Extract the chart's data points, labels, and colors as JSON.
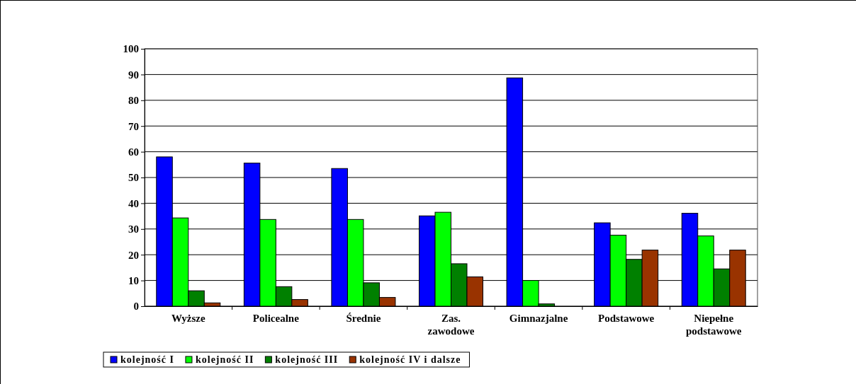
{
  "chart_data": {
    "type": "bar",
    "categories": [
      "Wyższe",
      "Policealne",
      "Średnie",
      "Zas. zawodowe",
      "Gimnazjalne",
      "Podstawowe",
      "Niepełne podstawowe"
    ],
    "series": [
      {
        "name": "kolejność I",
        "color": "#0000ff",
        "values": [
          58.0,
          55.6,
          53.5,
          35.1,
          88.7,
          32.4,
          36.1
        ]
      },
      {
        "name": "kolejność II",
        "color": "#00ff00",
        "values": [
          34.3,
          33.7,
          33.7,
          36.5,
          10.0,
          27.6,
          27.3
        ]
      },
      {
        "name": "kolejność III",
        "color": "#008000",
        "values": [
          6.0,
          7.6,
          9.1,
          16.5,
          0.9,
          18.2,
          14.5
        ]
      },
      {
        "name": "kolejność IV i dalsze",
        "color": "#993300",
        "values": [
          1.3,
          2.6,
          3.4,
          11.4,
          null,
          21.8,
          21.8
        ]
      }
    ],
    "ylim": [
      0,
      100
    ],
    "yticks": [
      0,
      10,
      20,
      30,
      40,
      50,
      60,
      70,
      80,
      90,
      100
    ],
    "grid": "y",
    "legend": "bottom left"
  }
}
